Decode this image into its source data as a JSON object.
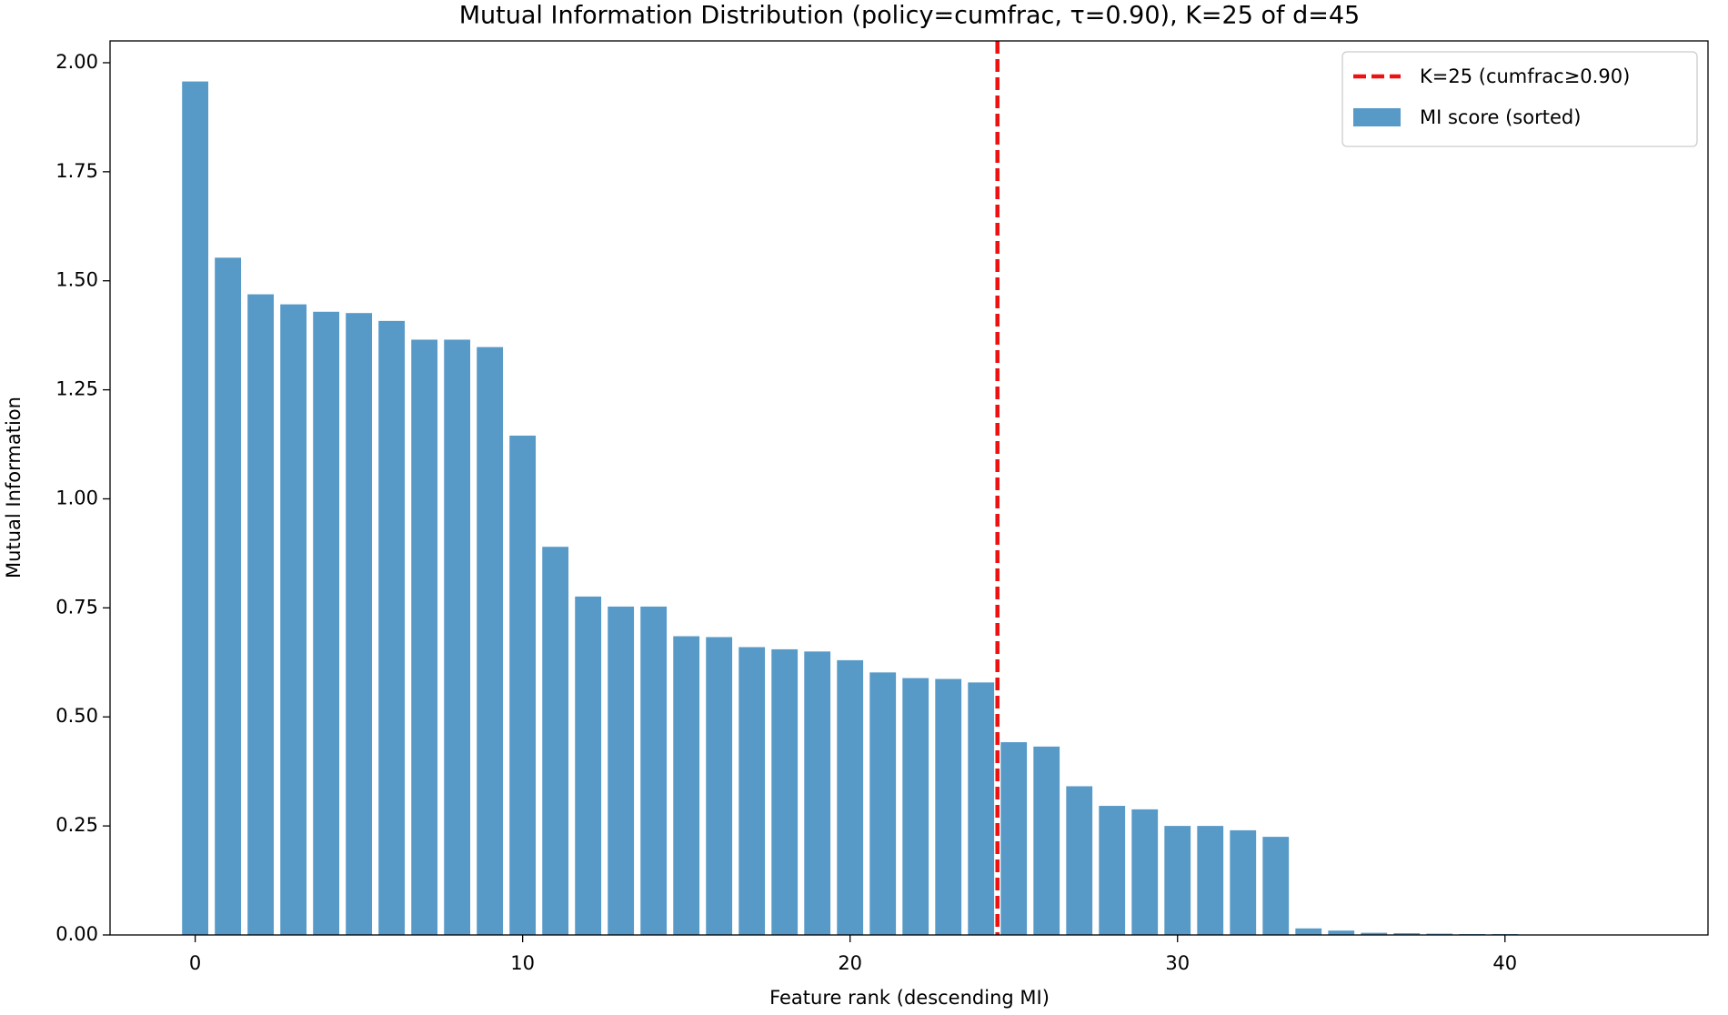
{
  "chart_data": {
    "type": "bar",
    "title": "Mutual Information Distribution (policy=cumfrac, τ=0.90), K=25 of d=45",
    "xlabel": "Feature rank (descending MI)",
    "ylabel": "Mutual Information",
    "x": [
      0,
      1,
      2,
      3,
      4,
      5,
      6,
      7,
      8,
      9,
      10,
      11,
      12,
      13,
      14,
      15,
      16,
      17,
      18,
      19,
      20,
      21,
      22,
      23,
      24,
      25,
      26,
      27,
      28,
      29,
      30,
      31,
      32,
      33,
      34,
      35,
      36,
      37,
      38,
      39,
      40,
      41,
      42,
      43,
      44
    ],
    "series": [
      {
        "name": "MI score (sorted)",
        "color": "#5799c7",
        "values": [
          1.957,
          1.553,
          1.469,
          1.446,
          1.429,
          1.426,
          1.408,
          1.365,
          1.365,
          1.348,
          1.145,
          0.89,
          0.776,
          0.753,
          0.753,
          0.685,
          0.683,
          0.66,
          0.655,
          0.65,
          0.63,
          0.602,
          0.589,
          0.587,
          0.579,
          0.442,
          0.432,
          0.341,
          0.296,
          0.288,
          0.25,
          0.25,
          0.24,
          0.225,
          0.015,
          0.01,
          0.005,
          0.004,
          0.003,
          0.002,
          0.002,
          0,
          0,
          0,
          0
        ]
      }
    ],
    "bar_width": 0.8,
    "vline": {
      "x": 24.5,
      "label": "K=25 (cumfrac≥0.90)",
      "color": "#ee1111"
    },
    "xlim": [
      -2.6,
      46.2
    ],
    "ylim": [
      0,
      2.05
    ],
    "xticks": [
      0,
      10,
      20,
      30,
      40
    ],
    "yticks": [
      {
        "value": 0,
        "label": "0.00"
      },
      {
        "value": 0.25,
        "label": "0.25"
      },
      {
        "value": 0.5,
        "label": "0.50"
      },
      {
        "value": 0.75,
        "label": "0.75"
      },
      {
        "value": 1,
        "label": "1.00"
      },
      {
        "value": 1.25,
        "label": "1.25"
      },
      {
        "value": 1.5,
        "label": "1.50"
      },
      {
        "value": 1.75,
        "label": "1.75"
      },
      {
        "value": 2,
        "label": "2.00"
      }
    ],
    "legend": "upper right"
  }
}
